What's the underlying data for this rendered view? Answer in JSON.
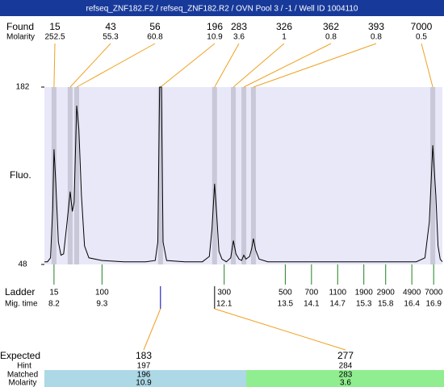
{
  "chart_data": {
    "type": "electropherogram",
    "title": "refseq_ZNF182.F2 / refseq_ZNF182.R2 / OVN Pool 3 / -1 / Well ID 1004110",
    "ylabel": "Fluo.",
    "ylim": [
      48,
      182
    ],
    "yticks": [
      182,
      48
    ],
    "xlim": [
      7.98,
      17.1
    ],
    "color": "#000000",
    "x": [
      7.98,
      8.05,
      8.12,
      8.17,
      8.2,
      8.24,
      8.3,
      8.36,
      8.42,
      8.5,
      8.57,
      8.62,
      8.66,
      8.72,
      8.77,
      8.83,
      8.9,
      9.0,
      9.3,
      9.8,
      10.3,
      10.52,
      10.58,
      10.62,
      10.66,
      10.7,
      10.78,
      11.2,
      11.6,
      11.76,
      11.82,
      11.88,
      11.93,
      11.98,
      12.05,
      12.15,
      12.25,
      12.31,
      12.37,
      12.44,
      12.5,
      12.55,
      12.6,
      12.68,
      12.73,
      12.77,
      12.82,
      12.9,
      13.1,
      13.6,
      14.2,
      14.8,
      15.4,
      16.0,
      16.5,
      16.7,
      16.8,
      16.88,
      16.95,
      17.0,
      17.05,
      17.1
    ],
    "values": [
      50,
      50,
      53,
      90,
      135,
      110,
      65,
      55,
      56,
      80,
      103,
      88,
      95,
      168,
      150,
      100,
      62,
      53,
      51,
      50,
      50,
      51,
      65,
      182,
      182,
      65,
      51,
      50,
      50,
      54,
      75,
      109,
      85,
      58,
      52,
      50,
      53,
      66,
      56,
      52,
      51,
      55,
      52,
      54,
      60,
      67.5,
      59,
      52,
      50,
      50,
      50,
      50,
      50,
      50,
      50,
      53,
      80,
      138,
      100,
      62,
      52,
      50
    ],
    "peaks": {
      "label": "Found",
      "molarity_label": "Molarity",
      "sizes": [
        15,
        43,
        56,
        196,
        283,
        326,
        362,
        393,
        7000
      ],
      "molarity": [
        252.5,
        55.3,
        60.8,
        10.9,
        3.6,
        1,
        0.8,
        0.8,
        0.5
      ],
      "times": [
        8.2,
        8.57,
        8.72,
        10.64,
        11.88,
        12.31,
        12.55,
        12.77,
        16.88
      ],
      "band_color": "#c8c8d8",
      "line_color": "#f0a020"
    },
    "ladder": {
      "label": "Ladder",
      "time_label": "Mig. time",
      "sizes": [
        15,
        100,
        300,
        500,
        700,
        1100,
        1900,
        2900,
        4900,
        7000
      ],
      "times": [
        8.2,
        9.3,
        12.1,
        13.5,
        14.1,
        14.7,
        15.3,
        15.8,
        16.4,
        16.9
      ],
      "color": "#208020"
    },
    "expected": {
      "label": "Expected",
      "hint_label": "Hint",
      "matched_label": "Matched",
      "molarity_label": "Molarity",
      "columns": [
        {
          "expected": 183,
          "hint": 197,
          "matched": 196,
          "molarity": 10.9,
          "color": "#add8e6"
        },
        {
          "expected": 277,
          "hint": 284,
          "matched": 283,
          "molarity": 3.6,
          "color": "#90ee90"
        }
      ]
    }
  }
}
